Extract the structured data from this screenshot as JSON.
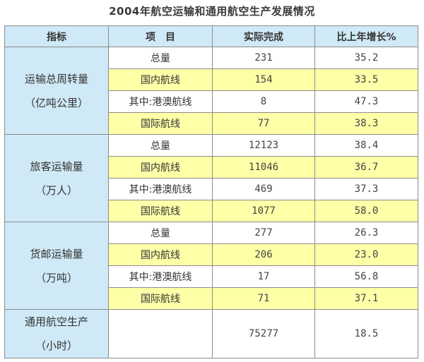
{
  "title": "2004年航空运输和通用航空生产发展情况",
  "columns": [
    "指标",
    "项　目",
    "实际完成",
    "比上年增长%"
  ],
  "groups": [
    {
      "cat_lines": [
        "运输总周转量",
        "（亿吨公里）"
      ],
      "rows": [
        {
          "item": "总量",
          "actual": "231",
          "growth": "35.2",
          "highlight": false
        },
        {
          "item": "国内航线",
          "actual": "154",
          "growth": "33.5",
          "highlight": true
        },
        {
          "item": "其中:港澳航线",
          "actual": "8",
          "growth": "47.3",
          "highlight": false
        },
        {
          "item": "国际航线",
          "actual": "77",
          "growth": "38.3",
          "highlight": true
        }
      ]
    },
    {
      "cat_lines": [
        "旅客运输量",
        "（万人）"
      ],
      "rows": [
        {
          "item": "总量",
          "actual": "12123",
          "growth": "38.4",
          "highlight": false
        },
        {
          "item": "国内航线",
          "actual": "11046",
          "growth": "36.7",
          "highlight": true
        },
        {
          "item": "其中:港澳航线",
          "actual": "469",
          "growth": "37.3",
          "highlight": false
        },
        {
          "item": "国际航线",
          "actual": "1077",
          "growth": "58.0",
          "highlight": true
        }
      ]
    },
    {
      "cat_lines": [
        "货邮运输量",
        "（万吨）"
      ],
      "rows": [
        {
          "item": "总量",
          "actual": "277",
          "growth": "26.3",
          "highlight": false
        },
        {
          "item": "国内航线",
          "actual": "206",
          "growth": "23.0",
          "highlight": true
        },
        {
          "item": "其中:港澳航线",
          "actual": "17",
          "growth": "56.8",
          "highlight": false
        },
        {
          "item": "国际航线",
          "actual": "71",
          "growth": "37.1",
          "highlight": true
        }
      ]
    }
  ],
  "general": {
    "cat_lines": [
      "通用航空生产",
      "（小时）"
    ],
    "item": "",
    "actual": "75277",
    "growth": "18.5"
  },
  "colors": {
    "header_bg": "#cfe9f6",
    "highlight_bg": "#ffffa8",
    "border": "#8c8c8c"
  }
}
